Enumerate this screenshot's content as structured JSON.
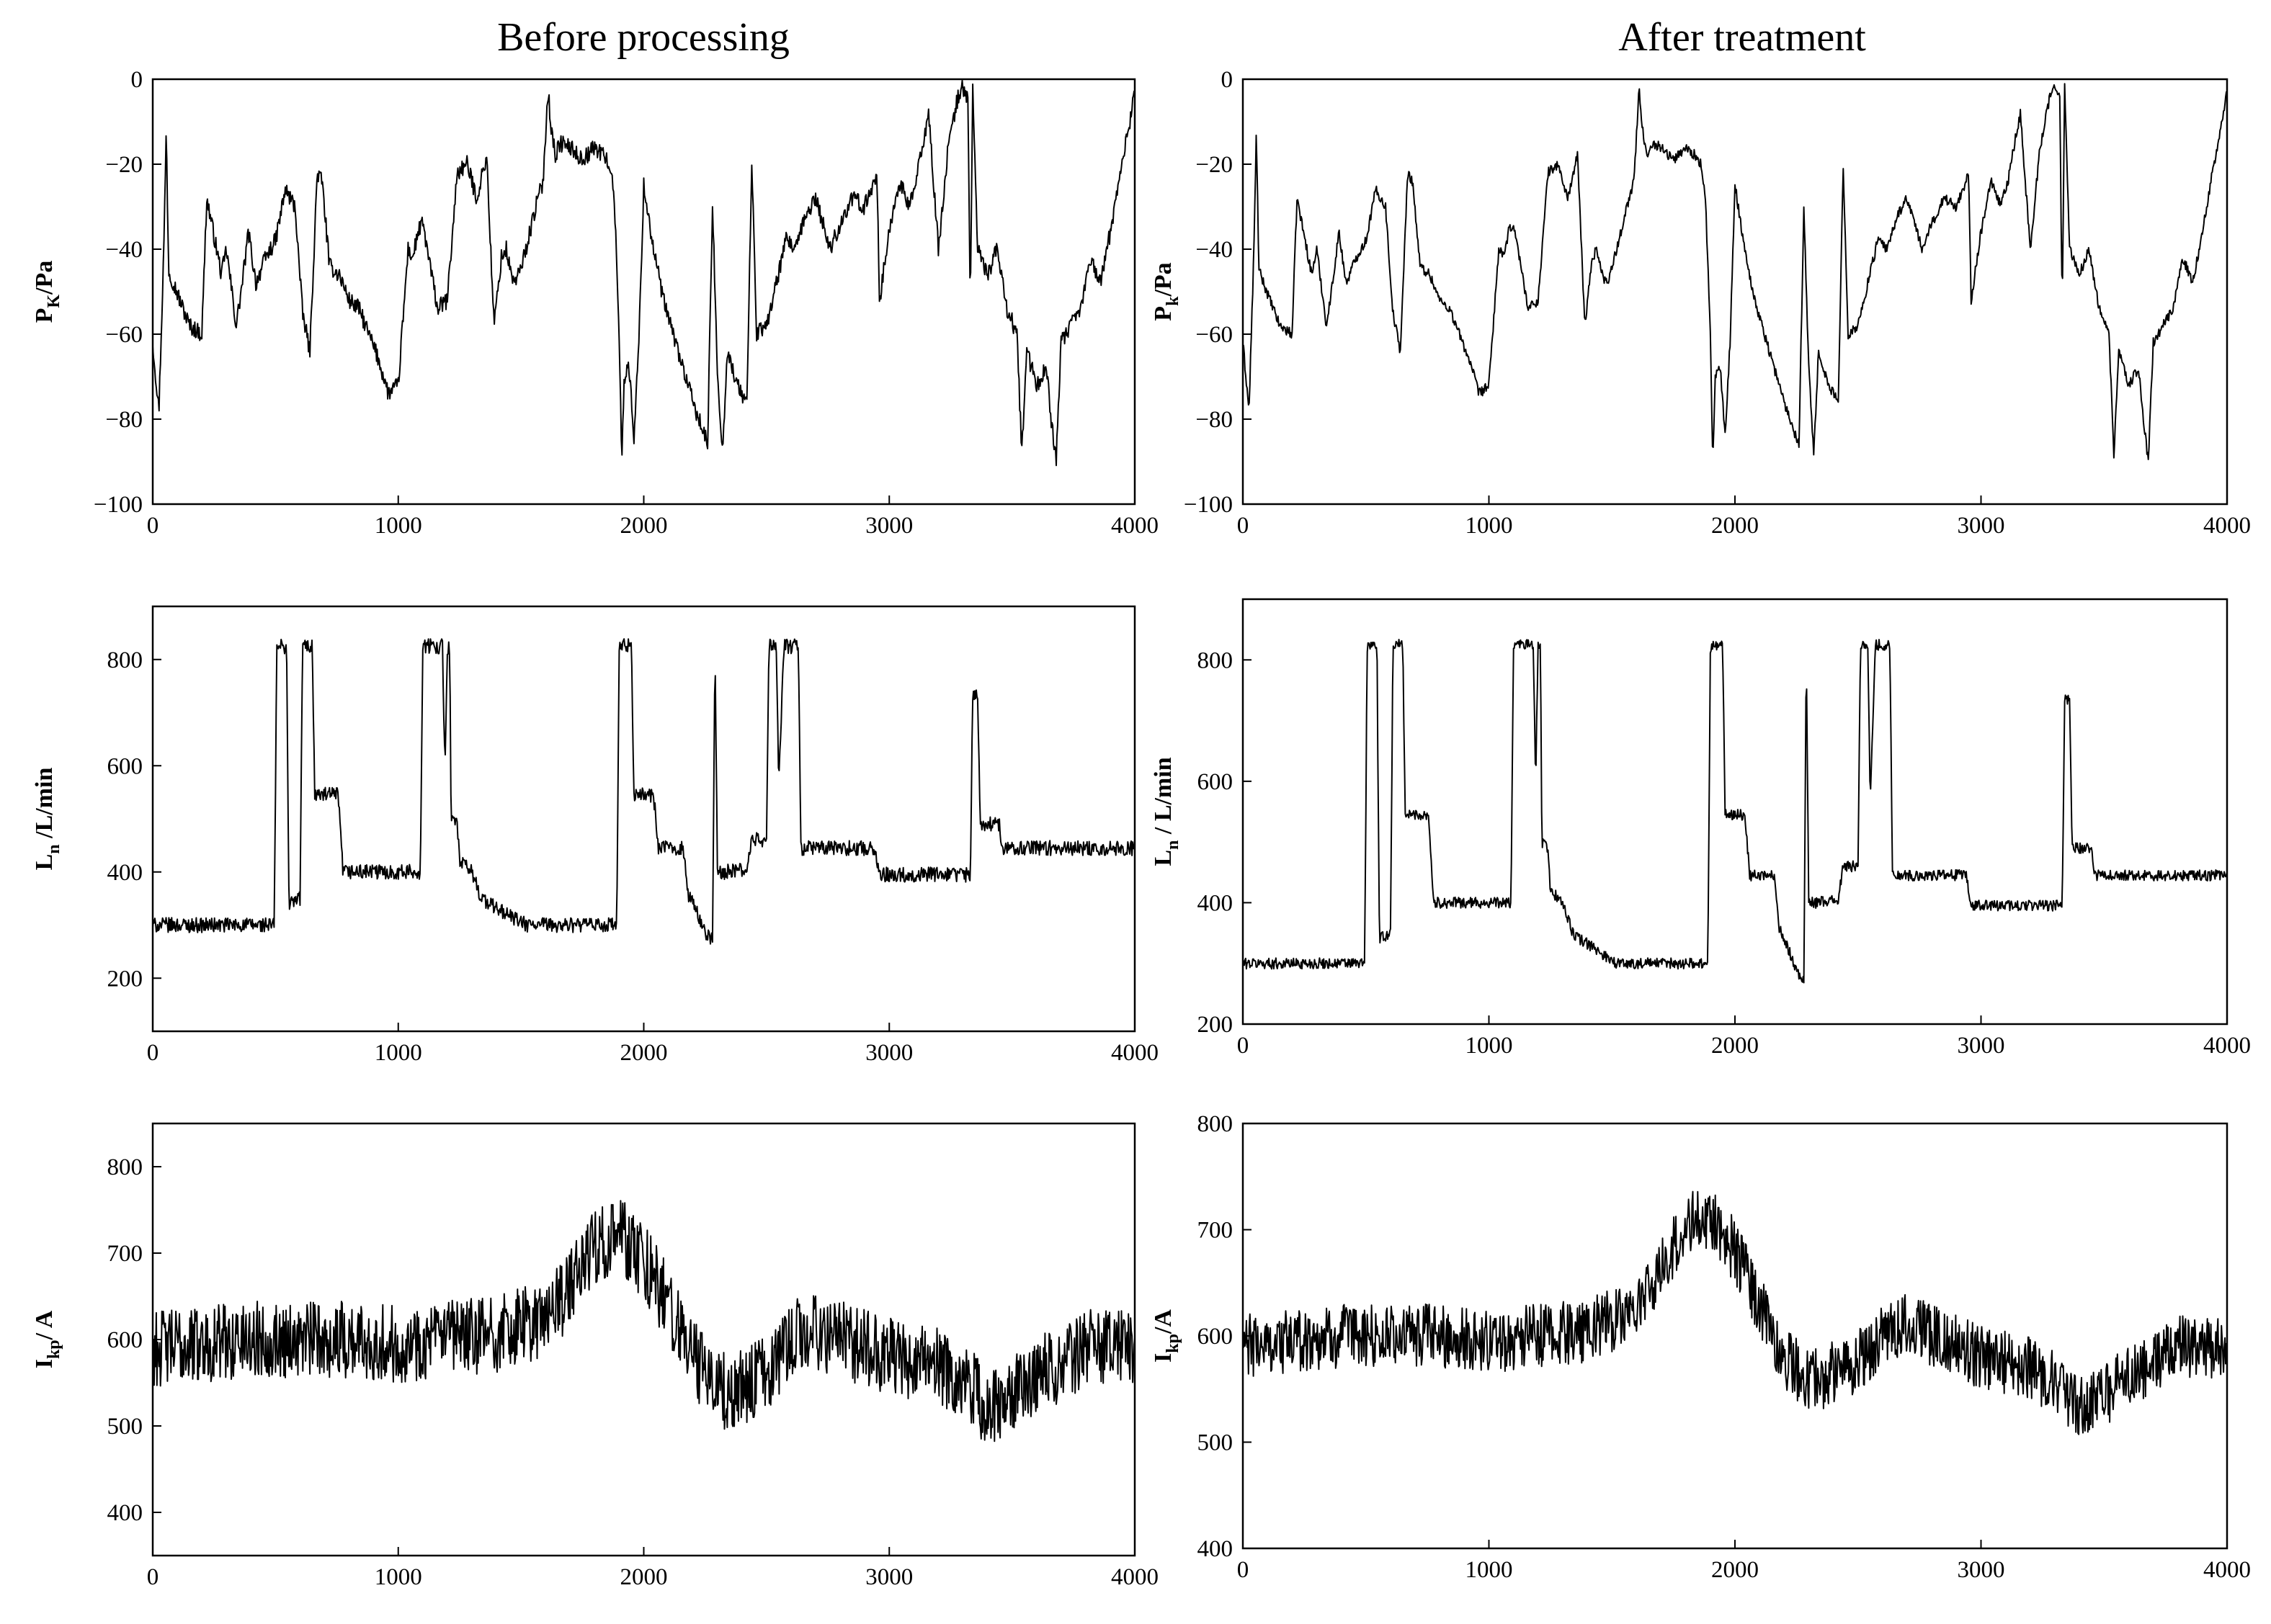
{
  "columns": [
    {
      "title": "Before processing"
    },
    {
      "title": "After treatment"
    }
  ],
  "chart_data": [
    {
      "id": "pk-before",
      "type": "line",
      "column": 0,
      "row": 0,
      "title": "",
      "xlabel": "",
      "ylabel_main": "P",
      "ylabel_sub": "K",
      "ylabel_tail": "/Pa",
      "xlim": [
        0,
        4000
      ],
      "ylim": [
        -100,
        0
      ],
      "xticks": [
        0,
        1000,
        2000,
        3000,
        4000
      ],
      "yticks": [
        0,
        -20,
        -40,
        -60,
        -80,
        -100
      ],
      "legend": "none",
      "grid": false,
      "noise": 2,
      "series": [
        {
          "x": [
            0,
            25,
            45,
            55,
            65,
            85,
            110,
            150,
            200,
            220,
            240,
            280,
            300,
            340,
            360,
            390,
            420,
            460,
            500,
            540,
            580,
            610,
            640,
            670,
            690,
            720,
            760,
            800,
            840,
            880,
            920,
            960,
            1000,
            1040,
            1060,
            1080,
            1100,
            1160,
            1200,
            1240,
            1280,
            1320,
            1360,
            1390,
            1420,
            1440,
            1460,
            1480,
            1520,
            1560,
            1590,
            1610,
            1620,
            1640,
            1660,
            1700,
            1750,
            1800,
            1840,
            1860,
            1880,
            1900,
            1910,
            1920,
            1940,
            1960,
            1980,
            2000,
            2040,
            2080,
            2120,
            2160,
            2200,
            2260,
            2280,
            2300,
            2320,
            2340,
            2380,
            2420,
            2440,
            2460,
            2500,
            2540,
            2580,
            2620,
            2660,
            2700,
            2760,
            2800,
            2850,
            2900,
            2950,
            2960,
            3000,
            3040,
            3080,
            3110,
            3140,
            3160,
            3200,
            3240,
            3280,
            3300,
            3320,
            3330,
            3340,
            3360,
            3400,
            3440,
            3480,
            3520,
            3540,
            3560,
            3600,
            3640,
            3660,
            3680,
            3700,
            3740,
            3780,
            3820,
            3860,
            3900,
            3940,
            3980,
            4000
          ],
          "values": [
            -62,
            -78,
            -40,
            -12,
            -45,
            -48,
            -52,
            -58,
            -60,
            -28,
            -34,
            -46,
            -40,
            -58,
            -50,
            -36,
            -48,
            -42,
            -38,
            -26,
            -30,
            -55,
            -64,
            -22,
            -24,
            -44,
            -46,
            -52,
            -54,
            -60,
            -66,
            -74,
            -72,
            -40,
            -42,
            -36,
            -34,
            -54,
            -52,
            -22,
            -20,
            -28,
            -18,
            -58,
            -42,
            -40,
            -46,
            -48,
            -40,
            -30,
            -24,
            -2,
            -10,
            -18,
            -15,
            -16,
            -19,
            -16,
            -18,
            -20,
            -28,
            -60,
            -90,
            -70,
            -68,
            -84,
            -62,
            -25,
            -40,
            -52,
            -60,
            -68,
            -76,
            -86,
            -30,
            -68,
            -88,
            -64,
            -72,
            -76,
            -20,
            -60,
            -58,
            -48,
            -38,
            -40,
            -32,
            -28,
            -40,
            -34,
            -28,
            -30,
            -22,
            -52,
            -36,
            -24,
            -30,
            -24,
            -14,
            -8,
            -40,
            -16,
            -4,
            -2,
            -4,
            -54,
            -2,
            -40,
            -46,
            -40,
            -54,
            -60,
            -88,
            -64,
            -72,
            -68,
            -80,
            -90,
            -62,
            -58,
            -54,
            -42,
            -48,
            -36,
            -22,
            -10,
            -2
          ]
        }
      ]
    },
    {
      "id": "pk-after",
      "type": "line",
      "column": 1,
      "row": 0,
      "title": "",
      "xlabel": "",
      "ylabel_main": "P",
      "ylabel_sub": "k",
      "ylabel_tail": "/Pa",
      "xlim": [
        0,
        4000
      ],
      "ylim": [
        -100,
        0
      ],
      "xticks": [
        0,
        1000,
        2000,
        3000,
        4000
      ],
      "yticks": [
        0,
        -20,
        -40,
        -60,
        -80,
        -100
      ],
      "legend": "none",
      "grid": false,
      "noise": 1.2,
      "series": [
        {
          "x": [
            0,
            25,
            45,
            55,
            65,
            85,
            110,
            150,
            200,
            220,
            240,
            280,
            300,
            340,
            360,
            390,
            420,
            460,
            500,
            540,
            580,
            610,
            640,
            670,
            690,
            720,
            760,
            800,
            840,
            880,
            920,
            960,
            1000,
            1040,
            1060,
            1080,
            1100,
            1160,
            1200,
            1240,
            1280,
            1320,
            1360,
            1390,
            1420,
            1440,
            1460,
            1480,
            1520,
            1560,
            1590,
            1610,
            1620,
            1640,
            1660,
            1700,
            1750,
            1800,
            1840,
            1860,
            1880,
            1900,
            1910,
            1920,
            1940,
            1960,
            1980,
            2000,
            2040,
            2080,
            2120,
            2160,
            2200,
            2260,
            2280,
            2300,
            2320,
            2340,
            2380,
            2420,
            2440,
            2460,
            2500,
            2540,
            2580,
            2620,
            2660,
            2700,
            2760,
            2800,
            2850,
            2900,
            2950,
            2960,
            3000,
            3040,
            3080,
            3110,
            3140,
            3160,
            3200,
            3240,
            3280,
            3300,
            3320,
            3330,
            3340,
            3360,
            3400,
            3440,
            3480,
            3520,
            3540,
            3560,
            3600,
            3640,
            3660,
            3680,
            3700,
            3740,
            3780,
            3820,
            3860,
            3900,
            3940,
            3980,
            4000
          ],
          "values": [
            -62,
            -78,
            -40,
            -12,
            -45,
            -48,
            -52,
            -58,
            -60,
            -28,
            -34,
            -46,
            -40,
            -58,
            -50,
            -36,
            -48,
            -42,
            -38,
            -26,
            -30,
            -55,
            -64,
            -22,
            -24,
            -44,
            -46,
            -52,
            -54,
            -60,
            -66,
            -74,
            -72,
            -40,
            -42,
            -36,
            -34,
            -54,
            -52,
            -22,
            -20,
            -28,
            -18,
            -58,
            -42,
            -40,
            -46,
            -48,
            -40,
            -30,
            -24,
            -2,
            -10,
            -18,
            -15,
            -16,
            -19,
            -16,
            -18,
            -20,
            -28,
            -60,
            -90,
            -70,
            -68,
            -84,
            -62,
            -25,
            -40,
            -52,
            -60,
            -68,
            -76,
            -86,
            -30,
            -68,
            -88,
            -64,
            -72,
            -76,
            -20,
            -60,
            -58,
            -48,
            -38,
            -40,
            -32,
            -28,
            -40,
            -34,
            -28,
            -30,
            -22,
            -52,
            -36,
            -24,
            -30,
            -24,
            -14,
            -8,
            -40,
            -16,
            -4,
            -2,
            -4,
            -54,
            -2,
            -40,
            -46,
            -40,
            -54,
            -60,
            -88,
            -64,
            -72,
            -68,
            -80,
            -90,
            -62,
            -58,
            -54,
            -42,
            -48,
            -36,
            -22,
            -10,
            -2
          ]
        }
      ]
    },
    {
      "id": "ln-before",
      "type": "line",
      "column": 0,
      "row": 1,
      "title": "",
      "xlabel": "",
      "ylabel_main": "L",
      "ylabel_sub": "n",
      "ylabel_tail": " /L/min",
      "xlim": [
        0,
        4000
      ],
      "ylim": [
        100,
        900
      ],
      "xticks": [
        0,
        1000,
        2000,
        3000,
        4000
      ],
      "yticks": [
        200,
        400,
        600,
        800
      ],
      "legend": "none",
      "grid": false,
      "noise": 14,
      "series": [
        {
          "x": [
            0,
            495,
            505,
            520,
            545,
            555,
            600,
            610,
            650,
            660,
            755,
            775,
            800,
            1090,
            1100,
            1180,
            1190,
            1200,
            1210,
            1215,
            1240,
            1250,
            1300,
            1340,
            1370,
            1520,
            1540,
            1890,
            1900,
            1910,
            1950,
            1960,
            2040,
            2060,
            2160,
            2180,
            2260,
            2280,
            2290,
            2300,
            2320,
            2330,
            2420,
            2440,
            2500,
            2510,
            2540,
            2550,
            2570,
            2580,
            2630,
            2640,
            2650,
            2940,
            2960,
            3330,
            3340,
            3360,
            3370,
            3450,
            3460,
            4000
          ],
          "values": [
            300,
            300,
            820,
            825,
            825,
            340,
            350,
            825,
            825,
            545,
            545,
            400,
            400,
            400,
            825,
            825,
            600,
            820,
            820,
            500,
            490,
            420,
            400,
            350,
            340,
            300,
            300,
            300,
            820,
            825,
            825,
            545,
            545,
            445,
            445,
            360,
            280,
            270,
            820,
            400,
            400,
            400,
            405,
            460,
            460,
            825,
            825,
            560,
            825,
            825,
            825,
            445,
            445,
            445,
            395,
            395,
            735,
            735,
            490,
            490,
            445,
            445
          ]
        }
      ]
    },
    {
      "id": "ln-after",
      "type": "line",
      "column": 1,
      "row": 1,
      "title": "",
      "xlabel": "",
      "ylabel_main": "L",
      "ylabel_sub": "n",
      "ylabel_tail": " / L/min",
      "xlim": [
        0,
        4000
      ],
      "ylim": [
        200,
        900
      ],
      "xticks": [
        0,
        1000,
        2000,
        3000,
        4000
      ],
      "yticks": [
        200,
        400,
        600,
        800
      ],
      "legend": "none",
      "grid": false,
      "noise": 9,
      "series": [
        {
          "x": [
            0,
            495,
            505,
            520,
            545,
            555,
            600,
            610,
            650,
            660,
            755,
            775,
            800,
            1090,
            1100,
            1180,
            1190,
            1200,
            1210,
            1215,
            1240,
            1250,
            1300,
            1340,
            1370,
            1520,
            1540,
            1890,
            1900,
            1910,
            1950,
            1960,
            2040,
            2060,
            2160,
            2180,
            2260,
            2280,
            2290,
            2300,
            2320,
            2330,
            2420,
            2440,
            2500,
            2510,
            2540,
            2550,
            2570,
            2580,
            2630,
            2640,
            2650,
            2940,
            2960,
            3330,
            3340,
            3360,
            3370,
            3450,
            3460,
            4000
          ],
          "values": [
            300,
            300,
            820,
            825,
            825,
            340,
            350,
            825,
            825,
            545,
            545,
            400,
            400,
            400,
            825,
            825,
            600,
            820,
            820,
            500,
            490,
            420,
            400,
            350,
            340,
            300,
            300,
            300,
            820,
            825,
            825,
            545,
            545,
            445,
            445,
            360,
            280,
            270,
            820,
            400,
            400,
            400,
            405,
            460,
            460,
            825,
            825,
            560,
            825,
            825,
            825,
            445,
            445,
            445,
            395,
            395,
            735,
            735,
            490,
            490,
            445,
            445
          ]
        }
      ]
    },
    {
      "id": "ikp-before",
      "type": "line",
      "column": 0,
      "row": 2,
      "title": "",
      "xlabel": "",
      "ylabel_main": "I",
      "ylabel_sub": "kp",
      "ylabel_tail": "/ A",
      "xlim": [
        0,
        4000
      ],
      "ylim": [
        350,
        850
      ],
      "xticks": [
        0,
        1000,
        2000,
        3000,
        4000
      ],
      "yticks": [
        400,
        500,
        600,
        700,
        800
      ],
      "legend": "none",
      "grid": false,
      "noise": 45,
      "series": [
        {
          "x": [
            0,
            200,
            400,
            600,
            800,
            1000,
            1200,
            1400,
            1600,
            1700,
            1800,
            1900,
            2000,
            2100,
            2200,
            2300,
            2400,
            2500,
            2600,
            2700,
            2800,
            2900,
            3000,
            3100,
            3200,
            3300,
            3400,
            3500,
            3600,
            3700,
            3800,
            3900,
            4000
          ],
          "values": [
            590,
            595,
            600,
            600,
            600,
            595,
            600,
            605,
            625,
            660,
            710,
            720,
            690,
            640,
            580,
            540,
            545,
            560,
            600,
            610,
            600,
            590,
            580,
            575,
            570,
            555,
            520,
            540,
            560,
            570,
            590,
            590,
            590
          ]
        }
      ]
    },
    {
      "id": "ikp-after",
      "type": "line",
      "column": 1,
      "row": 2,
      "title": "",
      "xlabel": "",
      "ylabel_main": "I",
      "ylabel_sub": "kp",
      "ylabel_tail": "/A",
      "xlim": [
        0,
        4000
      ],
      "ylim": [
        400,
        800
      ],
      "xticks": [
        0,
        1000,
        2000,
        3000,
        4000
      ],
      "yticks": [
        400,
        500,
        600,
        700,
        800
      ],
      "legend": "none",
      "grid": false,
      "noise": 30,
      "series": [
        {
          "x": [
            0,
            200,
            400,
            600,
            800,
            1000,
            1200,
            1400,
            1600,
            1700,
            1800,
            1900,
            2000,
            2100,
            2200,
            2300,
            2400,
            2500,
            2600,
            2700,
            2800,
            2900,
            3000,
            3100,
            3200,
            3300,
            3400,
            3500,
            3600,
            3700,
            3800,
            3900,
            4000
          ],
          "values": [
            590,
            595,
            600,
            600,
            600,
            595,
            600,
            605,
            625,
            660,
            705,
            710,
            680,
            630,
            580,
            555,
            565,
            575,
            600,
            610,
            600,
            590,
            580,
            575,
            570,
            555,
            530,
            545,
            560,
            570,
            590,
            590,
            590
          ]
        }
      ]
    }
  ]
}
